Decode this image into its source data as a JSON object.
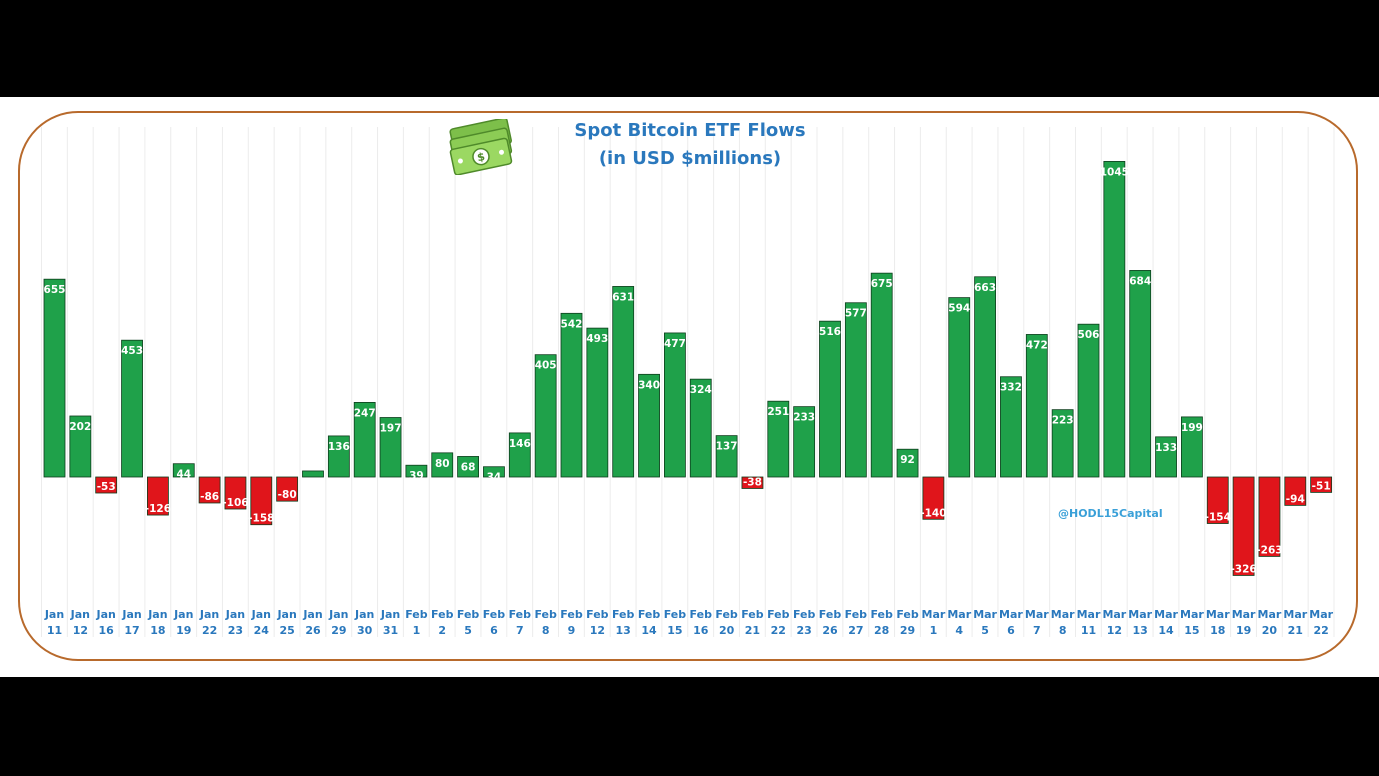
{
  "chart_data": {
    "type": "bar",
    "title": "Spot Bitcoin ETF Flows",
    "subtitle": "(in USD $millions)",
    "categories": [
      [
        "Jan",
        "11"
      ],
      [
        "Jan",
        "12"
      ],
      [
        "Jan",
        "16"
      ],
      [
        "Jan",
        "17"
      ],
      [
        "Jan",
        "18"
      ],
      [
        "Jan",
        "19"
      ],
      [
        "Jan",
        "22"
      ],
      [
        "Jan",
        "23"
      ],
      [
        "Jan",
        "24"
      ],
      [
        "Jan",
        "25"
      ],
      [
        "Jan",
        "26"
      ],
      [
        "Jan",
        "29"
      ],
      [
        "Jan",
        "30"
      ],
      [
        "Jan",
        "31"
      ],
      [
        "Feb",
        "1"
      ],
      [
        "Feb",
        "2"
      ],
      [
        "Feb",
        "5"
      ],
      [
        "Feb",
        "6"
      ],
      [
        "Feb",
        "7"
      ],
      [
        "Feb",
        "8"
      ],
      [
        "Feb",
        "9"
      ],
      [
        "Feb",
        "12"
      ],
      [
        "Feb",
        "13"
      ],
      [
        "Feb",
        "14"
      ],
      [
        "Feb",
        "15"
      ],
      [
        "Feb",
        "16"
      ],
      [
        "Feb",
        "20"
      ],
      [
        "Feb",
        "21"
      ],
      [
        "Feb",
        "22"
      ],
      [
        "Feb",
        "23"
      ],
      [
        "Feb",
        "26"
      ],
      [
        "Feb",
        "27"
      ],
      [
        "Feb",
        "28"
      ],
      [
        "Feb",
        "29"
      ],
      [
        "Mar",
        "1"
      ],
      [
        "Mar",
        "4"
      ],
      [
        "Mar",
        "5"
      ],
      [
        "Mar",
        "6"
      ],
      [
        "Mar",
        "7"
      ],
      [
        "Mar",
        "8"
      ],
      [
        "Mar",
        "11"
      ],
      [
        "Mar",
        "12"
      ],
      [
        "Mar",
        "13"
      ],
      [
        "Mar",
        "14"
      ],
      [
        "Mar",
        "15"
      ],
      [
        "Mar",
        "18"
      ],
      [
        "Mar",
        "19"
      ],
      [
        "Mar",
        "20"
      ],
      [
        "Mar",
        "21"
      ],
      [
        "Mar",
        "22"
      ]
    ],
    "values": [
      655,
      202,
      -53,
      453,
      -126,
      44,
      -86,
      -106,
      -158,
      -80,
      20,
      136,
      247,
      197,
      39,
      80,
      68,
      34,
      146,
      405,
      542,
      493,
      631,
      340,
      477,
      324,
      137,
      -38,
      251,
      233,
      516,
      577,
      675,
      92,
      -140,
      594,
      663,
      332,
      472,
      223,
      506,
      1045,
      684,
      133,
      199,
      -154,
      -326,
      -263,
      -94,
      -51
    ],
    "labels": [
      "655",
      "202",
      "-53",
      "453",
      "-126",
      "44",
      "-86",
      "-106",
      "-158",
      "-80",
      "",
      "136",
      "247",
      "197",
      "39",
      "80",
      "68",
      "34",
      "146",
      "405",
      "542",
      "493",
      "631",
      "340",
      "477",
      "324",
      "137",
      "-38",
      "251",
      "233",
      "516",
      "577",
      "675",
      "92",
      "-140",
      "594",
      "663",
      "332",
      "472",
      "223",
      "506",
      "1045",
      "684",
      "133",
      "199",
      "-154",
      "-326",
      "-263",
      "-94",
      "-51"
    ],
    "colors": {
      "positive": "#1fa14a",
      "negative": "#e0151b",
      "tick_text": "#2a78bd",
      "title": "#2a78bd",
      "frame": "#b86a2c"
    },
    "grid": true,
    "legend": "none"
  },
  "watermark": "@HODL15Capital",
  "icon": "money-stack-icon"
}
